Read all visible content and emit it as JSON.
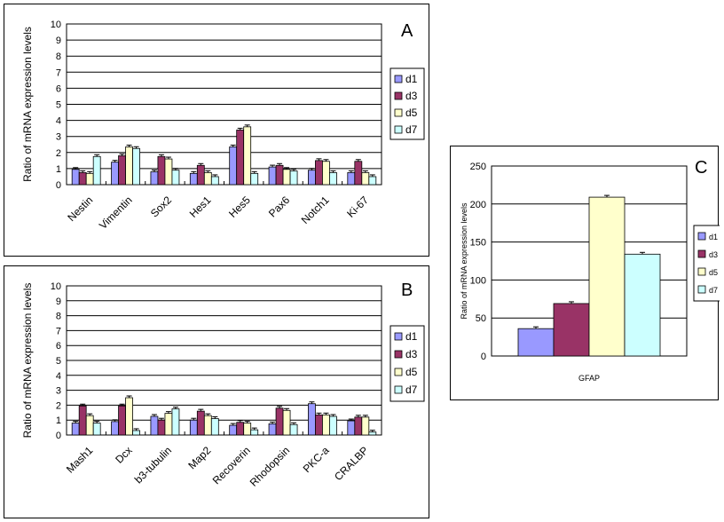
{
  "colors": {
    "d1": "#9999ff",
    "d3": "#993366",
    "d5": "#ffffcc",
    "d7": "#ccffff"
  },
  "chart_data": [
    {
      "type": "bar",
      "panel_letter": "A",
      "title": "",
      "ylabel": "Ratio of mRNA expression levels",
      "xlabel": "",
      "ylim": [
        0,
        10
      ],
      "yticks": [
        "0",
        "1",
        "2",
        "3",
        "4",
        "5",
        "6",
        "7",
        "8",
        "9",
        "10"
      ],
      "grid": true,
      "legend": "right",
      "categories": [
        "Nestin",
        "Vimentin",
        "Sox2",
        "Hes1",
        "Hes5",
        "Pax6",
        "Notch1",
        "Ki-67"
      ],
      "series": [
        {
          "name": "d1",
          "values": [
            0.95,
            1.4,
            0.8,
            0.7,
            2.35,
            1.1,
            0.9,
            0.75
          ]
        },
        {
          "name": "d3",
          "values": [
            0.75,
            1.8,
            1.75,
            1.2,
            3.4,
            1.2,
            1.5,
            1.45
          ]
        },
        {
          "name": "d5",
          "values": [
            0.7,
            2.35,
            1.6,
            0.75,
            3.6,
            0.95,
            1.45,
            0.75
          ]
        },
        {
          "name": "d7",
          "values": [
            1.75,
            2.25,
            0.9,
            0.5,
            0.7,
            0.85,
            0.75,
            0.5
          ]
        }
      ]
    },
    {
      "type": "bar",
      "panel_letter": "B",
      "title": "",
      "ylabel": "Ratio of mRNA expression levels",
      "xlabel": "",
      "ylim": [
        0,
        10
      ],
      "yticks": [
        "0",
        "1",
        "2",
        "3",
        "4",
        "5",
        "6",
        "7",
        "8",
        "9",
        "10"
      ],
      "grid": true,
      "legend": "right",
      "categories": [
        "Mash1",
        "Dcx",
        "b3-tubulin",
        "Map2",
        "Recoverin",
        "Rhodopsin",
        "PKC-a",
        "CRALBP"
      ],
      "series": [
        {
          "name": "d1",
          "values": [
            0.8,
            0.9,
            1.25,
            1.0,
            0.65,
            0.75,
            2.1,
            0.95
          ]
        },
        {
          "name": "d3",
          "values": [
            1.95,
            1.95,
            1.0,
            1.6,
            0.85,
            1.8,
            1.35,
            1.2
          ]
        },
        {
          "name": "d5",
          "values": [
            1.3,
            2.5,
            1.45,
            1.3,
            0.8,
            1.65,
            1.35,
            1.2
          ]
        },
        {
          "name": "d7",
          "values": [
            0.8,
            0.3,
            1.75,
            1.1,
            0.35,
            0.7,
            1.25,
            0.2
          ]
        }
      ]
    },
    {
      "type": "bar",
      "panel_letter": "C",
      "title": "",
      "ylabel": "Ratio of mRNA expression levels",
      "xlabel": "",
      "ylim": [
        0,
        250
      ],
      "yticks": [
        "0",
        "50",
        "100",
        "150",
        "200",
        "250"
      ],
      "grid": true,
      "legend": "right",
      "categories": [
        "GFAP"
      ],
      "series": [
        {
          "name": "d1",
          "values": [
            36
          ]
        },
        {
          "name": "d3",
          "values": [
            69
          ]
        },
        {
          "name": "d5",
          "values": [
            209
          ]
        },
        {
          "name": "d7",
          "values": [
            134
          ]
        }
      ]
    }
  ]
}
